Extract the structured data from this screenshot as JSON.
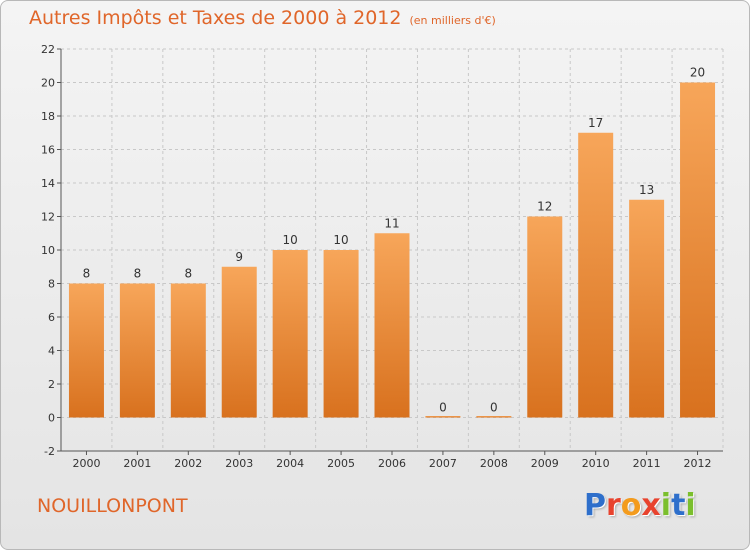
{
  "header": {
    "title": "Autres Impôts et Taxes de 2000 à 2012",
    "subtitle": "(en milliers d'€)"
  },
  "footer": {
    "commune": "NOUILLONPONT",
    "logo_letters": [
      "P",
      "r",
      "o",
      "x",
      "i",
      "t",
      "i"
    ]
  },
  "colors": {
    "title": "#e0662a",
    "bar_top": "#f7a65a",
    "bar_bottom": "#d8711e",
    "grid": "#c8c8c8",
    "axis": "#555555"
  },
  "chart_data": {
    "type": "bar",
    "title": "Autres Impôts et Taxes de 2000 à 2012",
    "subtitle": "(en milliers d'€)",
    "categories": [
      "2000",
      "2001",
      "2002",
      "2003",
      "2004",
      "2005",
      "2006",
      "2007",
      "2008",
      "2009",
      "2010",
      "2011",
      "2012"
    ],
    "values": [
      8,
      8,
      8,
      9,
      10,
      10,
      11,
      0,
      0,
      12,
      17,
      13,
      20
    ],
    "data_labels": [
      "8",
      "8",
      "8",
      "9",
      "10",
      "10",
      "11",
      "0",
      "0",
      "12",
      "17",
      "13",
      "20"
    ],
    "ylim": [
      -2,
      22
    ],
    "yticks": [
      -2,
      0,
      2,
      4,
      6,
      8,
      10,
      12,
      14,
      16,
      18,
      20,
      22
    ],
    "ytick_labels": [
      "-2",
      "0",
      "2",
      "4",
      "6",
      "8",
      "10",
      "12",
      "14",
      "16",
      "18",
      "20",
      "22"
    ],
    "xlabel": "",
    "ylabel": "",
    "grid": "horizontal dashed",
    "legend": "none"
  }
}
